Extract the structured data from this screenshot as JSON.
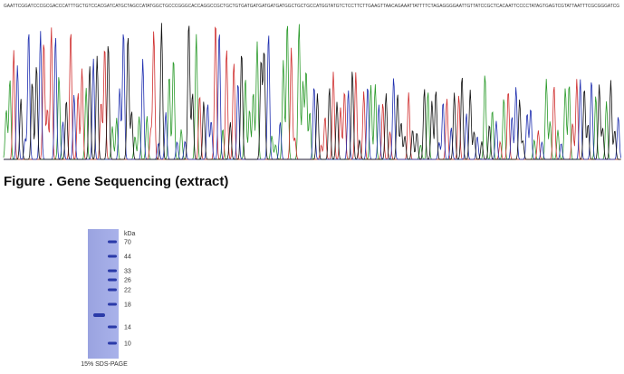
{
  "sequence": "GAATTCGGATCCCGCGACCCATTTGCTGTCCACGATCATGCTAGCCATATGGCTGCCCGGGCACCAGGCCGCTGCTGTGATGATGATGATGATGGCTGCTGCCATGGTATGTCTCCTTCTTGAAGTTAACAGAAATTATTTTCTAGAGGGGAATTGTTATCCGCTCACAATTCCCCTATAGTGAGTCGTATTAATTTCGCGGGATCG",
  "caption": "Figure . Gene Sequencing (extract)",
  "gel": {
    "unit": "kDa",
    "markers": [
      "70",
      "44",
      "33",
      "26",
      "22",
      "18",
      "14",
      "10"
    ],
    "label": "15% SDS-PAGE"
  }
}
